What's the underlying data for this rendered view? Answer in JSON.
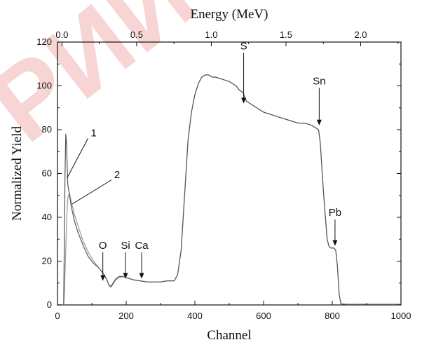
{
  "chart_data": {
    "type": "line",
    "title": "",
    "xlabel": "Channel",
    "ylabel": "Normalized Yield",
    "x2label": "Energy (MeV)",
    "xlim": [
      0,
      1000
    ],
    "ylim": [
      0,
      120
    ],
    "x2lim": [
      -0.03,
      2.27
    ],
    "xticks": [
      0,
      200,
      400,
      600,
      800,
      1000
    ],
    "yticks": [
      0,
      20,
      40,
      60,
      80,
      100,
      120
    ],
    "x2ticks": [
      0.0,
      0.5,
      1.0,
      1.5,
      2.0
    ],
    "x2ticklabels": [
      "0.0",
      "0.5",
      "1.0",
      "1.5",
      "2.0"
    ],
    "grid": false,
    "series": [
      {
        "name": "1",
        "color": "#555555",
        "x": [
          0,
          18,
          20,
          22,
          24,
          26,
          28,
          30,
          35,
          40,
          50,
          60,
          75,
          90,
          105,
          120,
          135,
          145,
          150,
          155,
          160,
          170,
          180,
          190,
          200,
          220,
          240,
          260,
          280,
          300,
          320,
          340,
          350,
          360,
          370,
          380,
          390,
          400,
          410,
          420,
          430,
          440,
          450,
          460,
          480,
          500,
          520,
          530,
          540,
          550,
          560,
          580,
          600,
          620,
          640,
          660,
          680,
          700,
          720,
          740,
          750,
          760,
          765,
          770,
          775,
          780,
          785,
          790,
          795,
          800,
          805,
          810,
          815,
          820,
          825,
          840,
          900,
          1000
        ],
        "y": [
          0,
          0,
          30,
          60,
          78,
          75,
          65,
          55,
          50,
          45,
          38,
          33,
          27,
          22,
          19,
          17,
          14,
          11,
          9,
          8.5,
          9.5,
          12,
          13,
          13,
          12.5,
          11.5,
          11,
          10.5,
          10.5,
          10.5,
          11,
          11,
          14,
          25,
          50,
          75,
          88,
          96,
          101,
          104,
          105,
          105,
          104,
          104,
          103,
          102,
          100,
          98,
          97,
          93,
          92,
          90,
          88,
          87,
          86,
          85,
          84,
          83,
          83,
          82,
          81,
          80,
          74,
          62,
          50,
          40,
          30,
          27,
          26,
          26,
          26,
          25,
          18,
          5,
          0.5,
          0.3,
          0.3,
          0.3
        ]
      },
      {
        "name": "2",
        "color": "#999999",
        "x": [
          0,
          18,
          20,
          22,
          24,
          26,
          28,
          30,
          35,
          40,
          50,
          60,
          75,
          90,
          105,
          120,
          135,
          145,
          150,
          155,
          160,
          170,
          180,
          190,
          200,
          220,
          240,
          260,
          280,
          300,
          320,
          340,
          350,
          360,
          370,
          380,
          390,
          400,
          410,
          420,
          430,
          440,
          450,
          460,
          480,
          500,
          520,
          530,
          540,
          550,
          560,
          580,
          600,
          620,
          640,
          660,
          680,
          700,
          720,
          740,
          750,
          760,
          765,
          770,
          775,
          780,
          785,
          790,
          795,
          800,
          805,
          810,
          815,
          820,
          825,
          840,
          900,
          1000
        ],
        "y": [
          0,
          0,
          5,
          15,
          25,
          35,
          43,
          49,
          51,
          47,
          41,
          36,
          29,
          24,
          20,
          17,
          14,
          11,
          9,
          8,
          9,
          11.5,
          12.5,
          13,
          12.5,
          11.5,
          11,
          10.5,
          10.5,
          10.5,
          11,
          11,
          14,
          25,
          50,
          75,
          88,
          96,
          101,
          104,
          105,
          105,
          104,
          104,
          103,
          102,
          100,
          98,
          97,
          93,
          92,
          90,
          88,
          87,
          86,
          85,
          84,
          83,
          83,
          82,
          81,
          80,
          74,
          62,
          50,
          40,
          30,
          27,
          26,
          26,
          26,
          25,
          18,
          5,
          0.5,
          0.3,
          0.3,
          0.3
        ]
      }
    ],
    "annotations": [
      {
        "text": "S",
        "x": 542,
        "y": 92,
        "arrow_from_y": 115
      },
      {
        "text": "Sn",
        "x": 762,
        "y": 82,
        "arrow_from_y": 99
      },
      {
        "text": "Pb",
        "x": 808,
        "y": 27,
        "arrow_from_y": 39
      },
      {
        "text": "O",
        "x": 132,
        "y": 11,
        "arrow_from_y": 24
      },
      {
        "text": "Si",
        "x": 198,
        "y": 12,
        "arrow_from_y": 24
      },
      {
        "text": "Ca",
        "x": 245,
        "y": 12,
        "arrow_from_y": 24
      }
    ],
    "curve_labels": [
      {
        "text": "1",
        "x": 97,
        "y": 77,
        "target_x": 28,
        "target_y": 58
      },
      {
        "text": "2",
        "x": 165,
        "y": 58,
        "target_x": 42,
        "target_y": 46
      }
    ]
  },
  "watermark": {
    "text": "РИЙ"
  }
}
